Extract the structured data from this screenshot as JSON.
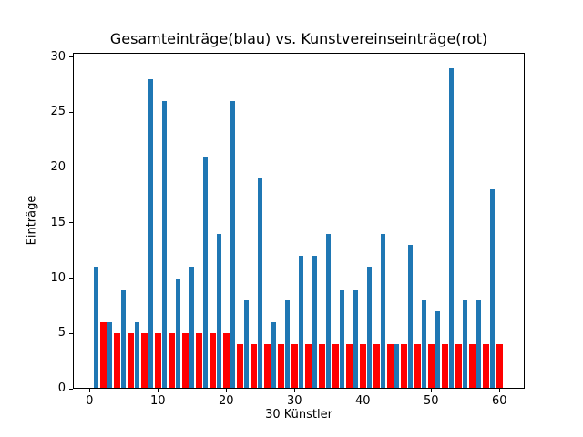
{
  "figure": {
    "background": "#ffffff",
    "spine_color": "#000000"
  },
  "chart_data": {
    "type": "bar",
    "title": "Gesamteinträge(blau) vs. Kunstvereinseinträge(rot)",
    "xlabel": "30 Künstler",
    "ylabel": "Einträge",
    "xlim": [
      -2.44,
      63.69
    ],
    "ylim": [
      0,
      30.37
    ],
    "xticks": [
      0,
      10,
      20,
      30,
      40,
      50,
      60
    ],
    "yticks": [
      0,
      5,
      10,
      15,
      20,
      25,
      30
    ],
    "grid": false,
    "legend_position": "none",
    "series": [
      {
        "name": "Gesamteinträge",
        "color": "#1f77b4",
        "bar_width": 0.7,
        "x": [
          1,
          3,
          5,
          7,
          9,
          11,
          13,
          15,
          17,
          19,
          21,
          23,
          25,
          27,
          29,
          31,
          33,
          35,
          37,
          39,
          41,
          43,
          45,
          47,
          49,
          51,
          53,
          55,
          57,
          59
        ],
        "values": [
          11,
          6,
          9,
          6,
          28,
          26,
          10,
          11,
          21,
          14,
          26,
          8,
          19,
          6,
          8,
          12,
          12,
          14,
          9,
          9,
          11,
          14,
          4,
          13,
          8,
          7,
          29,
          8,
          8,
          18
        ]
      },
      {
        "name": "Kunstvereinseinträge",
        "color": "#ff0000",
        "bar_width": 0.9,
        "x": [
          2,
          4,
          6,
          8,
          10,
          12,
          14,
          16,
          18,
          20,
          22,
          24,
          26,
          28,
          30,
          32,
          34,
          36,
          38,
          40,
          42,
          44,
          46,
          48,
          50,
          52,
          54,
          56,
          58,
          60
        ],
        "values": [
          6,
          5,
          5,
          5,
          5,
          5,
          5,
          5,
          5,
          5,
          4,
          4,
          4,
          4,
          4,
          4,
          4,
          4,
          4,
          4,
          4,
          4,
          4,
          4,
          4,
          4,
          4,
          4,
          4,
          4
        ]
      }
    ]
  }
}
